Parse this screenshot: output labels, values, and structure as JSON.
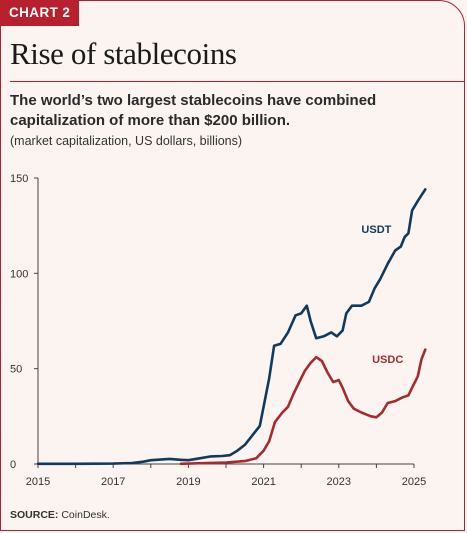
{
  "header": {
    "badge": "CHART 2",
    "title": "Rise of stablecoins",
    "subtitle": "The world’s two largest stablecoins have combined capitalization of more than $200 billion.",
    "units": "(market capitalization, US dollars, billions)"
  },
  "footer": {
    "source_label": "SOURCE:",
    "source_text": "CoinDesk."
  },
  "colors": {
    "accent": "#b8202e",
    "usdt": "#123a5c",
    "usdc": "#a72b2e",
    "background": "#fbf4f0"
  },
  "chart_data": {
    "type": "line",
    "title": "Rise of stablecoins",
    "xlabel": "",
    "ylabel": "",
    "xlim": [
      2015,
      2025
    ],
    "ylim": [
      0,
      150
    ],
    "x_ticks": [
      "2015",
      "2017",
      "2019",
      "2021",
      "2023",
      "2025"
    ],
    "y_ticks": [
      "0",
      "50",
      "100",
      "150"
    ],
    "grid": false,
    "legend": "inline labels",
    "series": [
      {
        "name": "USDT",
        "color": "#123a5c",
        "points": [
          [
            2015.0,
            0.1
          ],
          [
            2016.0,
            0.1
          ],
          [
            2017.0,
            0.2
          ],
          [
            2017.5,
            0.5
          ],
          [
            2017.8,
            1.2
          ],
          [
            2018.0,
            2.0
          ],
          [
            2018.3,
            2.4
          ],
          [
            2018.5,
            2.7
          ],
          [
            2018.8,
            2.2
          ],
          [
            2019.0,
            2.0
          ],
          [
            2019.3,
            3.0
          ],
          [
            2019.6,
            4.0
          ],
          [
            2019.9,
            4.2
          ],
          [
            2020.1,
            4.6
          ],
          [
            2020.3,
            7.0
          ],
          [
            2020.5,
            10.0
          ],
          [
            2020.7,
            15.0
          ],
          [
            2020.9,
            20.0
          ],
          [
            2021.0,
            30.0
          ],
          [
            2021.15,
            45.0
          ],
          [
            2021.28,
            62.0
          ],
          [
            2021.45,
            63.0
          ],
          [
            2021.65,
            69.0
          ],
          [
            2021.85,
            78.0
          ],
          [
            2022.0,
            79.0
          ],
          [
            2022.15,
            83.0
          ],
          [
            2022.25,
            75.0
          ],
          [
            2022.4,
            66.0
          ],
          [
            2022.6,
            67.0
          ],
          [
            2022.8,
            69.0
          ],
          [
            2022.95,
            67.0
          ],
          [
            2023.1,
            70.0
          ],
          [
            2023.2,
            79.0
          ],
          [
            2023.35,
            83.0
          ],
          [
            2023.6,
            83.0
          ],
          [
            2023.8,
            85.0
          ],
          [
            2023.95,
            92.0
          ],
          [
            2024.1,
            97.0
          ],
          [
            2024.3,
            105.0
          ],
          [
            2024.5,
            112.0
          ],
          [
            2024.65,
            114.0
          ],
          [
            2024.75,
            119.0
          ],
          [
            2024.85,
            121.0
          ],
          [
            2024.95,
            133.0
          ],
          [
            2025.1,
            138.0
          ],
          [
            2025.2,
            141.0
          ],
          [
            2025.3,
            144.0
          ]
        ]
      },
      {
        "name": "USDC",
        "color": "#a72b2e",
        "points": [
          [
            2018.8,
            0.1
          ],
          [
            2019.5,
            0.5
          ],
          [
            2020.0,
            0.8
          ],
          [
            2020.5,
            1.5
          ],
          [
            2020.8,
            3.0
          ],
          [
            2021.0,
            7.0
          ],
          [
            2021.15,
            12.0
          ],
          [
            2021.3,
            22.0
          ],
          [
            2021.5,
            27.0
          ],
          [
            2021.65,
            30.0
          ],
          [
            2021.8,
            37.0
          ],
          [
            2021.95,
            43.0
          ],
          [
            2022.1,
            49.0
          ],
          [
            2022.25,
            53.0
          ],
          [
            2022.4,
            56.0
          ],
          [
            2022.55,
            54.0
          ],
          [
            2022.7,
            48.0
          ],
          [
            2022.85,
            43.0
          ],
          [
            2023.0,
            44.0
          ],
          [
            2023.1,
            40.0
          ],
          [
            2023.25,
            33.0
          ],
          [
            2023.4,
            29.0
          ],
          [
            2023.6,
            27.0
          ],
          [
            2023.85,
            25.0
          ],
          [
            2024.0,
            24.5
          ],
          [
            2024.15,
            27.0
          ],
          [
            2024.3,
            32.0
          ],
          [
            2024.5,
            33.0
          ],
          [
            2024.7,
            35.0
          ],
          [
            2024.85,
            36.0
          ],
          [
            2024.95,
            40.0
          ],
          [
            2025.1,
            46.0
          ],
          [
            2025.2,
            55.0
          ],
          [
            2025.3,
            60.0
          ]
        ]
      }
    ]
  }
}
